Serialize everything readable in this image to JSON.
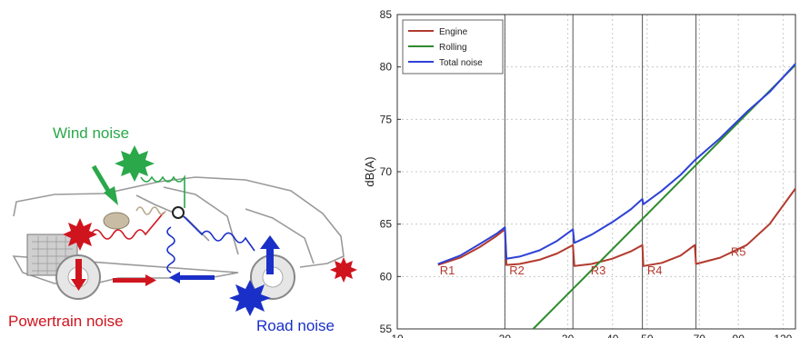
{
  "illustration": {
    "labels": {
      "wind": "Wind noise",
      "powertrain": "Powertrain noise",
      "road": "Road noise"
    },
    "colors": {
      "wind": "#2aa84a",
      "powertrain": "#d0141e",
      "road": "#1a2fc8",
      "car_outline": "#9a9a9a"
    }
  },
  "chart_data": {
    "type": "line",
    "title": "",
    "xlabel": "",
    "ylabel": "dB(A)",
    "x_scale": "log",
    "xlim": [
      10,
      130
    ],
    "ylim": [
      55,
      85
    ],
    "x_ticks": [
      10,
      20,
      30,
      40,
      50,
      70,
      90,
      120
    ],
    "y_ticks": [
      55,
      60,
      65,
      70,
      75,
      80,
      85
    ],
    "grid": "dashed",
    "legend_position": "top-left",
    "series": [
      {
        "name": "Engine",
        "color": "#b23a2e",
        "x": [
          13,
          15,
          17,
          19,
          20,
          20.2,
          22,
          25,
          28,
          31,
          31.3,
          35,
          40,
          45,
          48.5,
          48.8,
          55,
          62,
          68,
          68.5,
          80,
          95,
          110,
          130
        ],
        "y": [
          61.1,
          61.8,
          62.8,
          63.9,
          64.5,
          61.1,
          61.2,
          61.6,
          62.2,
          63.0,
          61.0,
          61.2,
          61.7,
          62.4,
          63.0,
          61.0,
          61.3,
          62.0,
          63.0,
          61.2,
          61.8,
          63.0,
          65.0,
          68.4
        ]
      },
      {
        "name": "Rolling",
        "color": "#2f8a2f",
        "x": [
          24,
          130
        ],
        "y": [
          55,
          80.2
        ]
      },
      {
        "name": "Total noise",
        "color": "#2e42d6",
        "x": [
          13,
          15,
          17,
          19,
          20,
          20.2,
          22,
          25,
          28,
          31,
          31.3,
          35,
          40,
          45,
          48.5,
          48.8,
          55,
          62,
          68,
          68.5,
          80,
          95,
          110,
          130
        ],
        "y": [
          61.2,
          62.0,
          63.1,
          64.1,
          64.7,
          61.7,
          61.9,
          62.5,
          63.4,
          64.5,
          63.2,
          64.0,
          65.2,
          66.4,
          67.4,
          66.9,
          68.2,
          69.7,
          71.1,
          71.2,
          73.2,
          75.7,
          77.6,
          80.3
        ]
      }
    ],
    "annotations": [
      {
        "text": "R1",
        "x": 13.8,
        "y": 60.2
      },
      {
        "text": "R2",
        "x": 21.6,
        "y": 60.2
      },
      {
        "text": "R3",
        "x": 36.5,
        "y": 60.2
      },
      {
        "text": "R4",
        "x": 52.5,
        "y": 60.2
      },
      {
        "text": "R5",
        "x": 90.0,
        "y": 62.0
      }
    ],
    "vertical_lines": [
      20,
      31,
      48.5,
      68.5
    ]
  }
}
